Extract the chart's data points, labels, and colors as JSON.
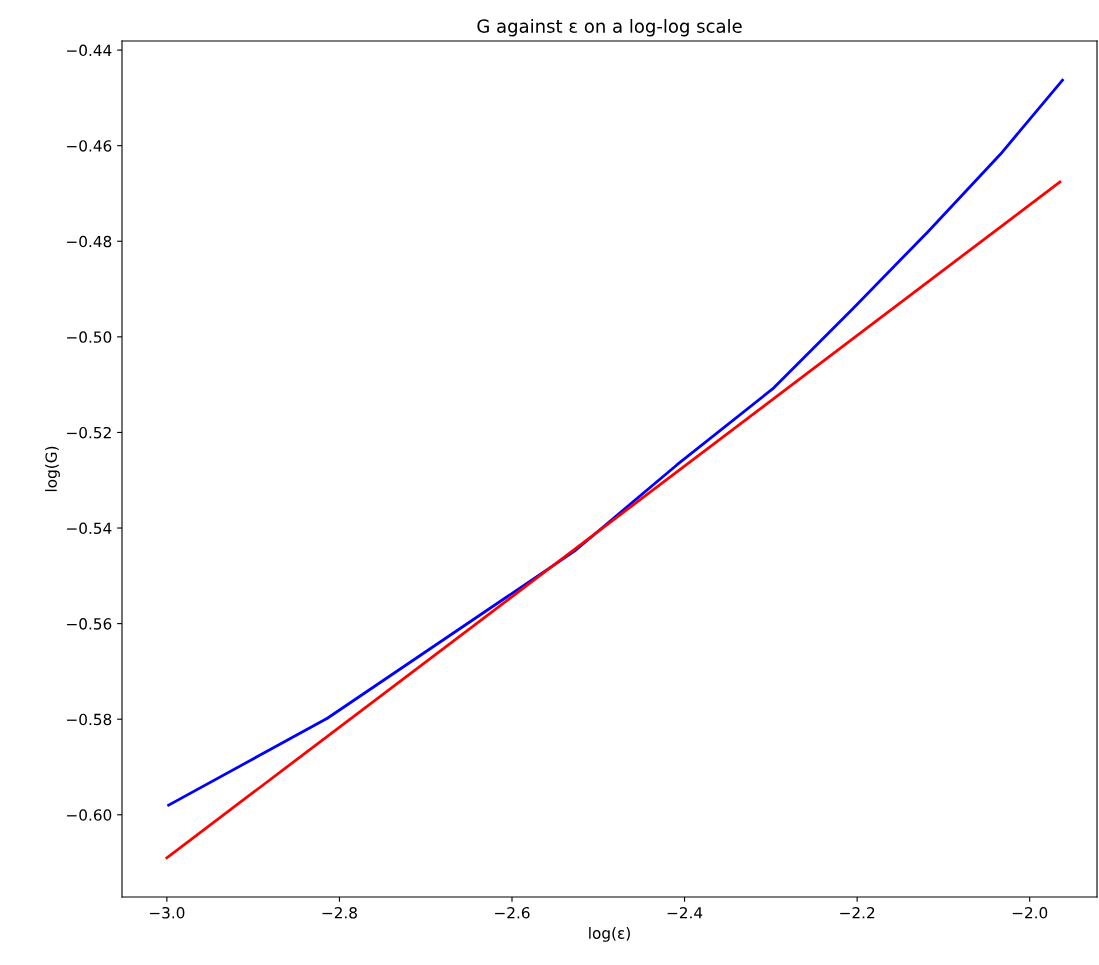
{
  "chart_data": {
    "type": "line",
    "title": "G against ε on a log-log scale",
    "xlabel": "log(ε)",
    "ylabel": "log(G)",
    "series": [
      {
        "color": "#0000ff",
        "x": [
          -2.998,
          -2.814,
          -2.528,
          -2.409,
          -2.298,
          -2.205,
          -2.119,
          -2.034,
          -1.962
        ],
        "values": [
          -0.598,
          -0.5798,
          -0.5449,
          -0.5268,
          -0.5109,
          -0.4941,
          -0.4782,
          -0.4618,
          -0.4463
        ]
      },
      {
        "color": "#ff0000",
        "x": [
          -3.0,
          -1.965
        ],
        "values": [
          -0.609,
          -0.4676
        ]
      }
    ],
    "xlim": [
      -3.052,
      -1.922
    ],
    "ylim": [
      -0.6172,
      -0.4381
    ],
    "xticks": [
      {
        "value": -3.0,
        "label": "−3.0"
      },
      {
        "value": -2.8,
        "label": "−2.8"
      },
      {
        "value": -2.6,
        "label": "−2.6"
      },
      {
        "value": -2.4,
        "label": "−2.4"
      },
      {
        "value": -2.2,
        "label": "−2.2"
      },
      {
        "value": -2.0,
        "label": "−2.0"
      }
    ],
    "yticks": [
      {
        "value": -0.6,
        "label": "−0.60"
      },
      {
        "value": -0.58,
        "label": "−0.58"
      },
      {
        "value": -0.56,
        "label": "−0.56"
      },
      {
        "value": -0.54,
        "label": "−0.54"
      },
      {
        "value": -0.52,
        "label": "−0.52"
      },
      {
        "value": -0.5,
        "label": "−0.50"
      },
      {
        "value": -0.48,
        "label": "−0.48"
      },
      {
        "value": -0.46,
        "label": "−0.46"
      },
      {
        "value": -0.44,
        "label": "−0.44"
      }
    ],
    "grid": false
  }
}
